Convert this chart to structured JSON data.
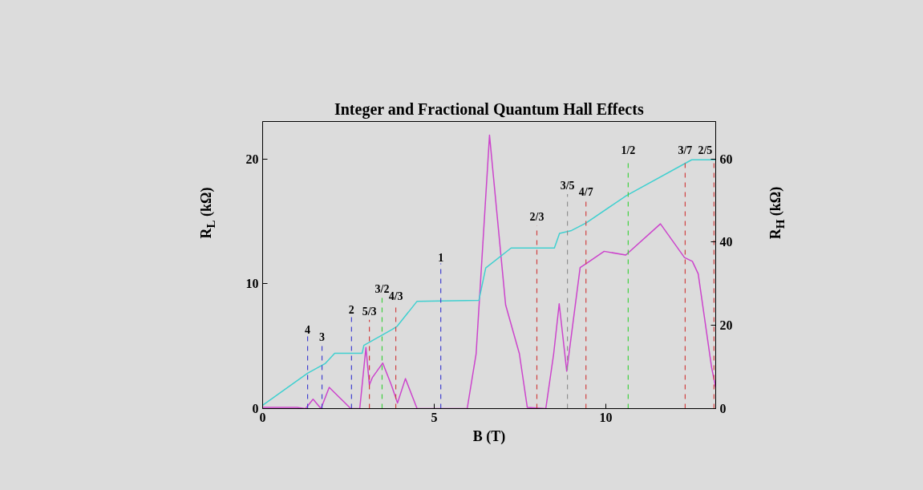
{
  "chart_data": {
    "type": "line",
    "title": "Integer and Fractional Quantum Hall Effects",
    "xlabel": "B (T)",
    "ylabel": "R$_{L}$ (kΩ)",
    "y2label": "R$_{H}$ (kΩ)",
    "xlim": [
      0,
      13.2
    ],
    "ylim": [
      0,
      23
    ],
    "y2lim": [
      0,
      69
    ],
    "xticks": [
      0,
      5,
      10
    ],
    "yticks": [
      0,
      10,
      20
    ],
    "y2ticks": [
      0,
      20,
      40,
      60
    ],
    "grid": false,
    "series": [
      {
        "color": "#cc44cc",
        "x": [
          0,
          0.5,
          1.0,
          1.25,
          1.47,
          1.7,
          1.94,
          2.2,
          2.57,
          2.83,
          3.01,
          3.11,
          3.2,
          3.5,
          3.75,
          3.93,
          4.16,
          4.5,
          5.96,
          6.22,
          6.61,
          7.08,
          7.48,
          7.71,
          8.25,
          8.48,
          8.64,
          8.86,
          9.25,
          9.42,
          9.95,
          10.58,
          11.59,
          12.29,
          12.52,
          12.69,
          13.08,
          13.2
        ],
        "values": [
          0.1,
          0.1,
          0.1,
          0.0,
          0.75,
          0.0,
          1.7,
          1.0,
          0.0,
          0.0,
          4.9,
          1.9,
          2.5,
          3.65,
          1.9,
          0.45,
          2.4,
          0.0,
          0.0,
          4.4,
          21.9,
          8.3,
          4.4,
          0.1,
          0.0,
          4.4,
          8.4,
          3.0,
          11.3,
          11.6,
          12.6,
          12.3,
          14.8,
          12.1,
          11.8,
          10.8,
          3.3,
          1.7
        ]
      },
      {
        "color": "#40d0d0",
        "axis": "y2",
        "x": [
          0,
          1.31,
          1.82,
          2.1,
          2.9,
          2.95,
          3.77,
          3.92,
          4.5,
          6.3,
          6.5,
          7.24,
          7.6,
          8.5,
          8.65,
          9.0,
          9.42,
          10.6,
          12.5,
          13.2
        ],
        "values": [
          0.8,
          8.5,
          10.8,
          13.3,
          13.3,
          15.2,
          19.0,
          19.8,
          25.8,
          26.0,
          33.8,
          38.6,
          38.6,
          38.6,
          42.1,
          42.8,
          44.6,
          51.2,
          59.8,
          59.8
        ]
      }
    ],
    "ref_lines": [
      {
        "axis": "x",
        "value": 1.31,
        "color": "#4040d0",
        "line_style": "dashed"
      },
      {
        "axis": "x",
        "value": 1.73,
        "color": "#4040d0",
        "line_style": "dashed"
      },
      {
        "axis": "x",
        "value": 2.59,
        "color": "#4040d0",
        "line_style": "dashed"
      },
      {
        "axis": "x",
        "value": 3.11,
        "color": "#d04040",
        "line_style": "dashed"
      },
      {
        "axis": "x",
        "value": 3.48,
        "color": "#40d040",
        "line_style": "dashed"
      },
      {
        "axis": "x",
        "value": 3.88,
        "color": "#d04040",
        "line_style": "dashed"
      },
      {
        "axis": "x",
        "value": 5.19,
        "color": "#4040d0",
        "line_style": "dashed"
      },
      {
        "axis": "x",
        "value": 7.99,
        "color": "#d04040",
        "line_style": "dashed"
      },
      {
        "axis": "x",
        "value": 8.88,
        "color": "#909090",
        "line_style": "dashed"
      },
      {
        "axis": "x",
        "value": 9.42,
        "color": "#d04040",
        "line_style": "dashed"
      },
      {
        "axis": "x",
        "value": 10.65,
        "color": "#40d040",
        "line_style": "dashed"
      },
      {
        "axis": "x",
        "value": 12.31,
        "color": "#d04040",
        "line_style": "dashed"
      },
      {
        "axis": "x",
        "value": 13.15,
        "color": "#d04040",
        "line_style": "dashed"
      }
    ],
    "annotations": [
      "4",
      "3",
      "2",
      "5/3",
      "3/2",
      "4/3",
      "1",
      "2/3",
      "3/5",
      "4/7",
      "1/2",
      "3/7",
      "2/5"
    ]
  }
}
